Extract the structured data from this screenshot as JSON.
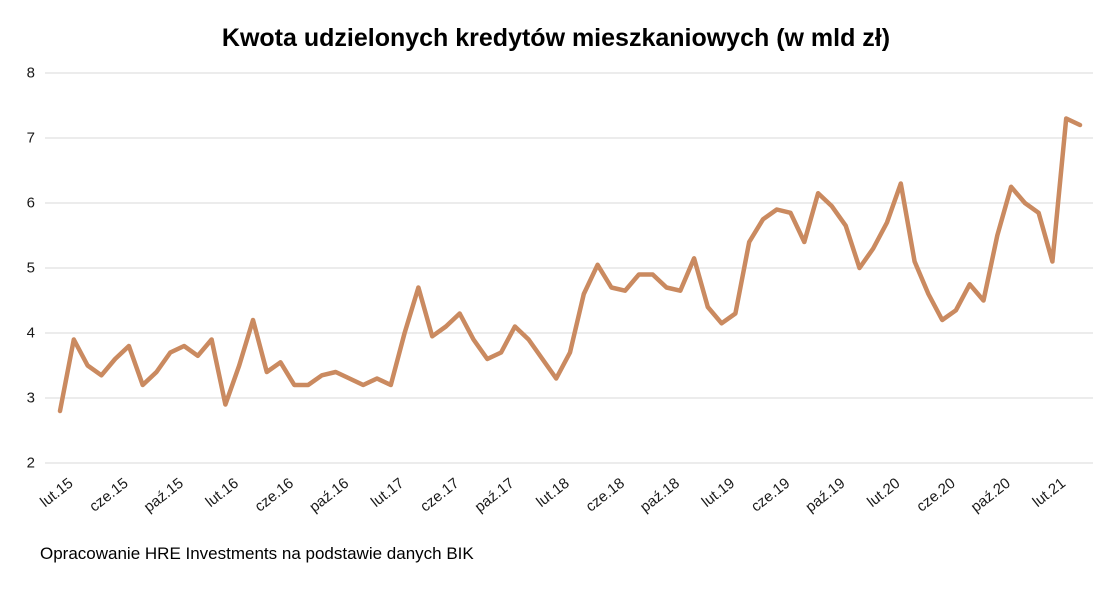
{
  "title": "Kwota udzielonych kredytów mieszkaniowych (w mld zł)",
  "source_note": "Opracowanie HRE Investments na podstawie danych BIK",
  "chart_data": {
    "type": "line",
    "title": "Kwota udzielonych kredytów mieszkaniowych (w mld zł)",
    "xlabel": "",
    "ylabel": "",
    "ylim": [
      2,
      8
    ],
    "yticks": [
      2,
      3,
      4,
      5,
      6,
      7,
      8
    ],
    "grid": "horizontal",
    "legend": "none",
    "line_color": "#CA8A60",
    "line_width": 4.5,
    "grid_color": "#D9D9D9",
    "text_color": "#1A1A1A",
    "x_unit": "month",
    "x_start_label": "lut.15",
    "xtick_labels": [
      "lut.15",
      "cze.15",
      "paź.15",
      "lut.16",
      "cze.16",
      "paź.16",
      "lut.17",
      "cze.17",
      "paź.17",
      "lut.18",
      "cze.18",
      "paź.18",
      "lut.19",
      "cze.19",
      "paź.19",
      "lut.20",
      "cze.20",
      "paź.20",
      "lut.21"
    ],
    "xtick_indices": [
      0,
      4,
      8,
      12,
      16,
      20,
      24,
      28,
      32,
      36,
      40,
      44,
      48,
      52,
      56,
      60,
      64,
      68,
      72
    ],
    "values": [
      2.8,
      3.9,
      3.5,
      3.35,
      3.6,
      3.8,
      3.2,
      3.4,
      3.7,
      3.8,
      3.65,
      3.9,
      2.9,
      3.5,
      4.2,
      3.4,
      3.55,
      3.2,
      3.2,
      3.35,
      3.4,
      3.3,
      3.2,
      3.3,
      3.2,
      4.0,
      4.7,
      3.95,
      4.1,
      4.3,
      3.9,
      3.6,
      3.7,
      4.1,
      3.9,
      3.6,
      3.3,
      3.7,
      4.6,
      5.05,
      4.7,
      4.65,
      4.9,
      4.9,
      4.7,
      4.65,
      5.15,
      4.4,
      4.15,
      4.3,
      5.4,
      5.75,
      5.9,
      5.85,
      5.4,
      6.15,
      5.95,
      5.65,
      5.0,
      5.3,
      5.7,
      6.3,
      5.1,
      4.6,
      4.2,
      4.35,
      4.75,
      4.5,
      5.5,
      6.25,
      6.0,
      5.85,
      5.1,
      7.3,
      7.2
    ]
  }
}
